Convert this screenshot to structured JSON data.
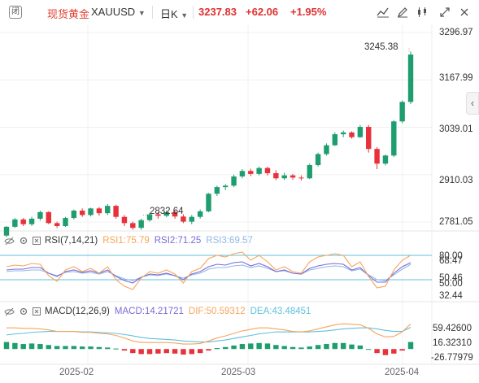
{
  "header": {
    "logo_char": "闭",
    "symbol_cn": "现货黄金",
    "symbol": "XAUUSD",
    "timeframe": "日K",
    "price": "3237.83",
    "change": "+62.06",
    "change_pct": "+1.95%"
  },
  "toolbar_icons": [
    "line-chart-icon",
    "edit-icon",
    "candle-settings-icon",
    "fullscreen-icon",
    "close-icon"
  ],
  "price_axis": [
    "3296.97",
    "3167.99",
    "3039.01",
    "2910.03",
    "2781.05"
  ],
  "annotations": {
    "high_label": "3245.38",
    "low_label": "2832.64"
  },
  "rsi": {
    "title": "RSI(7,14,21)",
    "rsi1": "RSI1:75.79",
    "rsi2": "RSI2:71.25",
    "rsi3": "RSI3:69.57",
    "axis": [
      "80.00",
      "68.47",
      "50.46",
      "50.00",
      "32.44"
    ]
  },
  "macd": {
    "title": "MACD(12,26,9)",
    "macd": "MACD:14.21721",
    "dif": "DIF:50.59312",
    "dea": "DEA:43.48451",
    "axis": [
      "59.42600",
      "16.32310",
      "-26.77979"
    ]
  },
  "x_axis": [
    "2025-02",
    "2025-03",
    "2025-04"
  ],
  "colors": {
    "up": "#1e9e6e",
    "down": "#e8313a",
    "rsi1": "#f7a55b",
    "rsi2": "#7a6bd6",
    "rsi3": "#8fb8e8",
    "dif": "#f7a55b",
    "dea": "#5ec1df"
  },
  "candles": [
    [
      2744,
      2770,
      2740,
      2768
    ],
    [
      2768,
      2792,
      2765,
      2788
    ],
    [
      2788,
      2792,
      2770,
      2775
    ],
    [
      2775,
      2795,
      2770,
      2790
    ],
    [
      2790,
      2812,
      2785,
      2808
    ],
    [
      2808,
      2810,
      2775,
      2778
    ],
    [
      2778,
      2782,
      2765,
      2770
    ],
    [
      2770,
      2795,
      2768,
      2792
    ],
    [
      2792,
      2815,
      2788,
      2812
    ],
    [
      2812,
      2818,
      2795,
      2800
    ],
    [
      2800,
      2820,
      2796,
      2818
    ],
    [
      2818,
      2822,
      2798,
      2805
    ],
    [
      2805,
      2830,
      2800,
      2825
    ],
    [
      2825,
      2828,
      2790,
      2795
    ],
    [
      2795,
      2800,
      2770,
      2778
    ],
    [
      2778,
      2782,
      2760,
      2765
    ],
    [
      2765,
      2790,
      2760,
      2786
    ],
    [
      2786,
      2806,
      2782,
      2802
    ],
    [
      2802,
      2808,
      2790,
      2798
    ],
    [
      2798,
      2812,
      2794,
      2808
    ],
    [
      2808,
      2812,
      2790,
      2796
    ],
    [
      2796,
      2802,
      2778,
      2782
    ],
    [
      2782,
      2800,
      2775,
      2795
    ],
    [
      2795,
      2815,
      2790,
      2810
    ],
    [
      2810,
      2860,
      2808,
      2858
    ],
    [
      2858,
      2880,
      2852,
      2876
    ],
    [
      2876,
      2884,
      2868,
      2880
    ],
    [
      2880,
      2910,
      2876,
      2905
    ],
    [
      2905,
      2925,
      2900,
      2920
    ],
    [
      2920,
      2926,
      2906,
      2912
    ],
    [
      2912,
      2932,
      2908,
      2928
    ],
    [
      2928,
      2932,
      2908,
      2914
    ],
    [
      2914,
      2922,
      2895,
      2900
    ],
    [
      2900,
      2915,
      2895,
      2908
    ],
    [
      2908,
      2912,
      2896,
      2902
    ],
    [
      2902,
      2908,
      2894,
      2900
    ],
    [
      2900,
      2940,
      2898,
      2936
    ],
    [
      2936,
      2970,
      2932,
      2966
    ],
    [
      2966,
      2995,
      2962,
      2990
    ],
    [
      2990,
      3025,
      2988,
      3020
    ],
    [
      3020,
      3030,
      3012,
      3025
    ],
    [
      3025,
      3028,
      3008,
      3012
    ],
    [
      3012,
      3045,
      3010,
      3040
    ],
    [
      3040,
      3045,
      2970,
      2980
    ],
    [
      2980,
      2985,
      2925,
      2940
    ],
    [
      2940,
      2965,
      2935,
      2962
    ],
    [
      2962,
      3058,
      2958,
      3055
    ],
    [
      3055,
      3112,
      3050,
      3108
    ],
    [
      3108,
      3245,
      3102,
      3237
    ]
  ],
  "rsi_series": {
    "rsi1": [
      66,
      68,
      67,
      70,
      69,
      55,
      48,
      62,
      66,
      60,
      64,
      58,
      66,
      50,
      42,
      38,
      52,
      60,
      58,
      62,
      57,
      46,
      60,
      64,
      76,
      80,
      78,
      82,
      84,
      74,
      80,
      72,
      62,
      66,
      60,
      58,
      72,
      78,
      80,
      82,
      80,
      66,
      72,
      54,
      40,
      42,
      62,
      74,
      80
    ],
    "rsi2": [
      62,
      63,
      63,
      65,
      65,
      58,
      54,
      60,
      62,
      59,
      61,
      58,
      62,
      54,
      49,
      46,
      53,
      57,
      56,
      58,
      55,
      50,
      57,
      60,
      66,
      69,
      68,
      71,
      72,
      67,
      70,
      66,
      60,
      62,
      58,
      57,
      64,
      67,
      69,
      70,
      69,
      62,
      65,
      55,
      47,
      47,
      58,
      66,
      71
    ],
    "rsi3": [
      60,
      61,
      61,
      62,
      62,
      58,
      55,
      59,
      60,
      58,
      59,
      57,
      60,
      55,
      51,
      49,
      53,
      56,
      55,
      57,
      55,
      52,
      56,
      58,
      63,
      65,
      65,
      67,
      68,
      65,
      67,
      64,
      60,
      61,
      58,
      57,
      62,
      64,
      66,
      67,
      66,
      61,
      63,
      56,
      50,
      49,
      56,
      63,
      69
    ]
  },
  "macd_series": {
    "hist": [
      14,
      12,
      10,
      11,
      10,
      8,
      6,
      6,
      6,
      5,
      5,
      4,
      3,
      1,
      -3,
      -8,
      -10,
      -10,
      -9,
      -8,
      -9,
      -11,
      -10,
      -8,
      -3,
      2,
      4,
      7,
      10,
      11,
      12,
      11,
      8,
      6,
      4,
      3,
      5,
      8,
      10,
      12,
      12,
      9,
      7,
      0,
      -8,
      -12,
      -9,
      -3,
      14
    ],
    "dif": [
      42,
      42,
      41,
      41,
      40,
      38,
      35,
      35,
      35,
      33,
      33,
      31,
      30,
      27,
      22,
      16,
      13,
      13,
      13,
      13,
      12,
      10,
      10,
      11,
      16,
      22,
      26,
      31,
      36,
      39,
      42,
      42,
      40,
      38,
      35,
      34,
      36,
      40,
      44,
      48,
      50,
      49,
      48,
      41,
      30,
      24,
      25,
      34,
      50
    ],
    "dea": [
      28,
      30,
      31,
      33,
      34,
      35,
      35,
      35,
      35,
      34,
      34,
      33,
      32,
      31,
      29,
      26,
      23,
      21,
      20,
      19,
      18,
      16,
      15,
      14,
      14,
      16,
      18,
      21,
      24,
      27,
      30,
      32,
      34,
      34,
      34,
      34,
      34,
      35,
      36,
      38,
      40,
      41,
      42,
      42,
      40,
      37,
      35,
      35,
      43
    ]
  }
}
